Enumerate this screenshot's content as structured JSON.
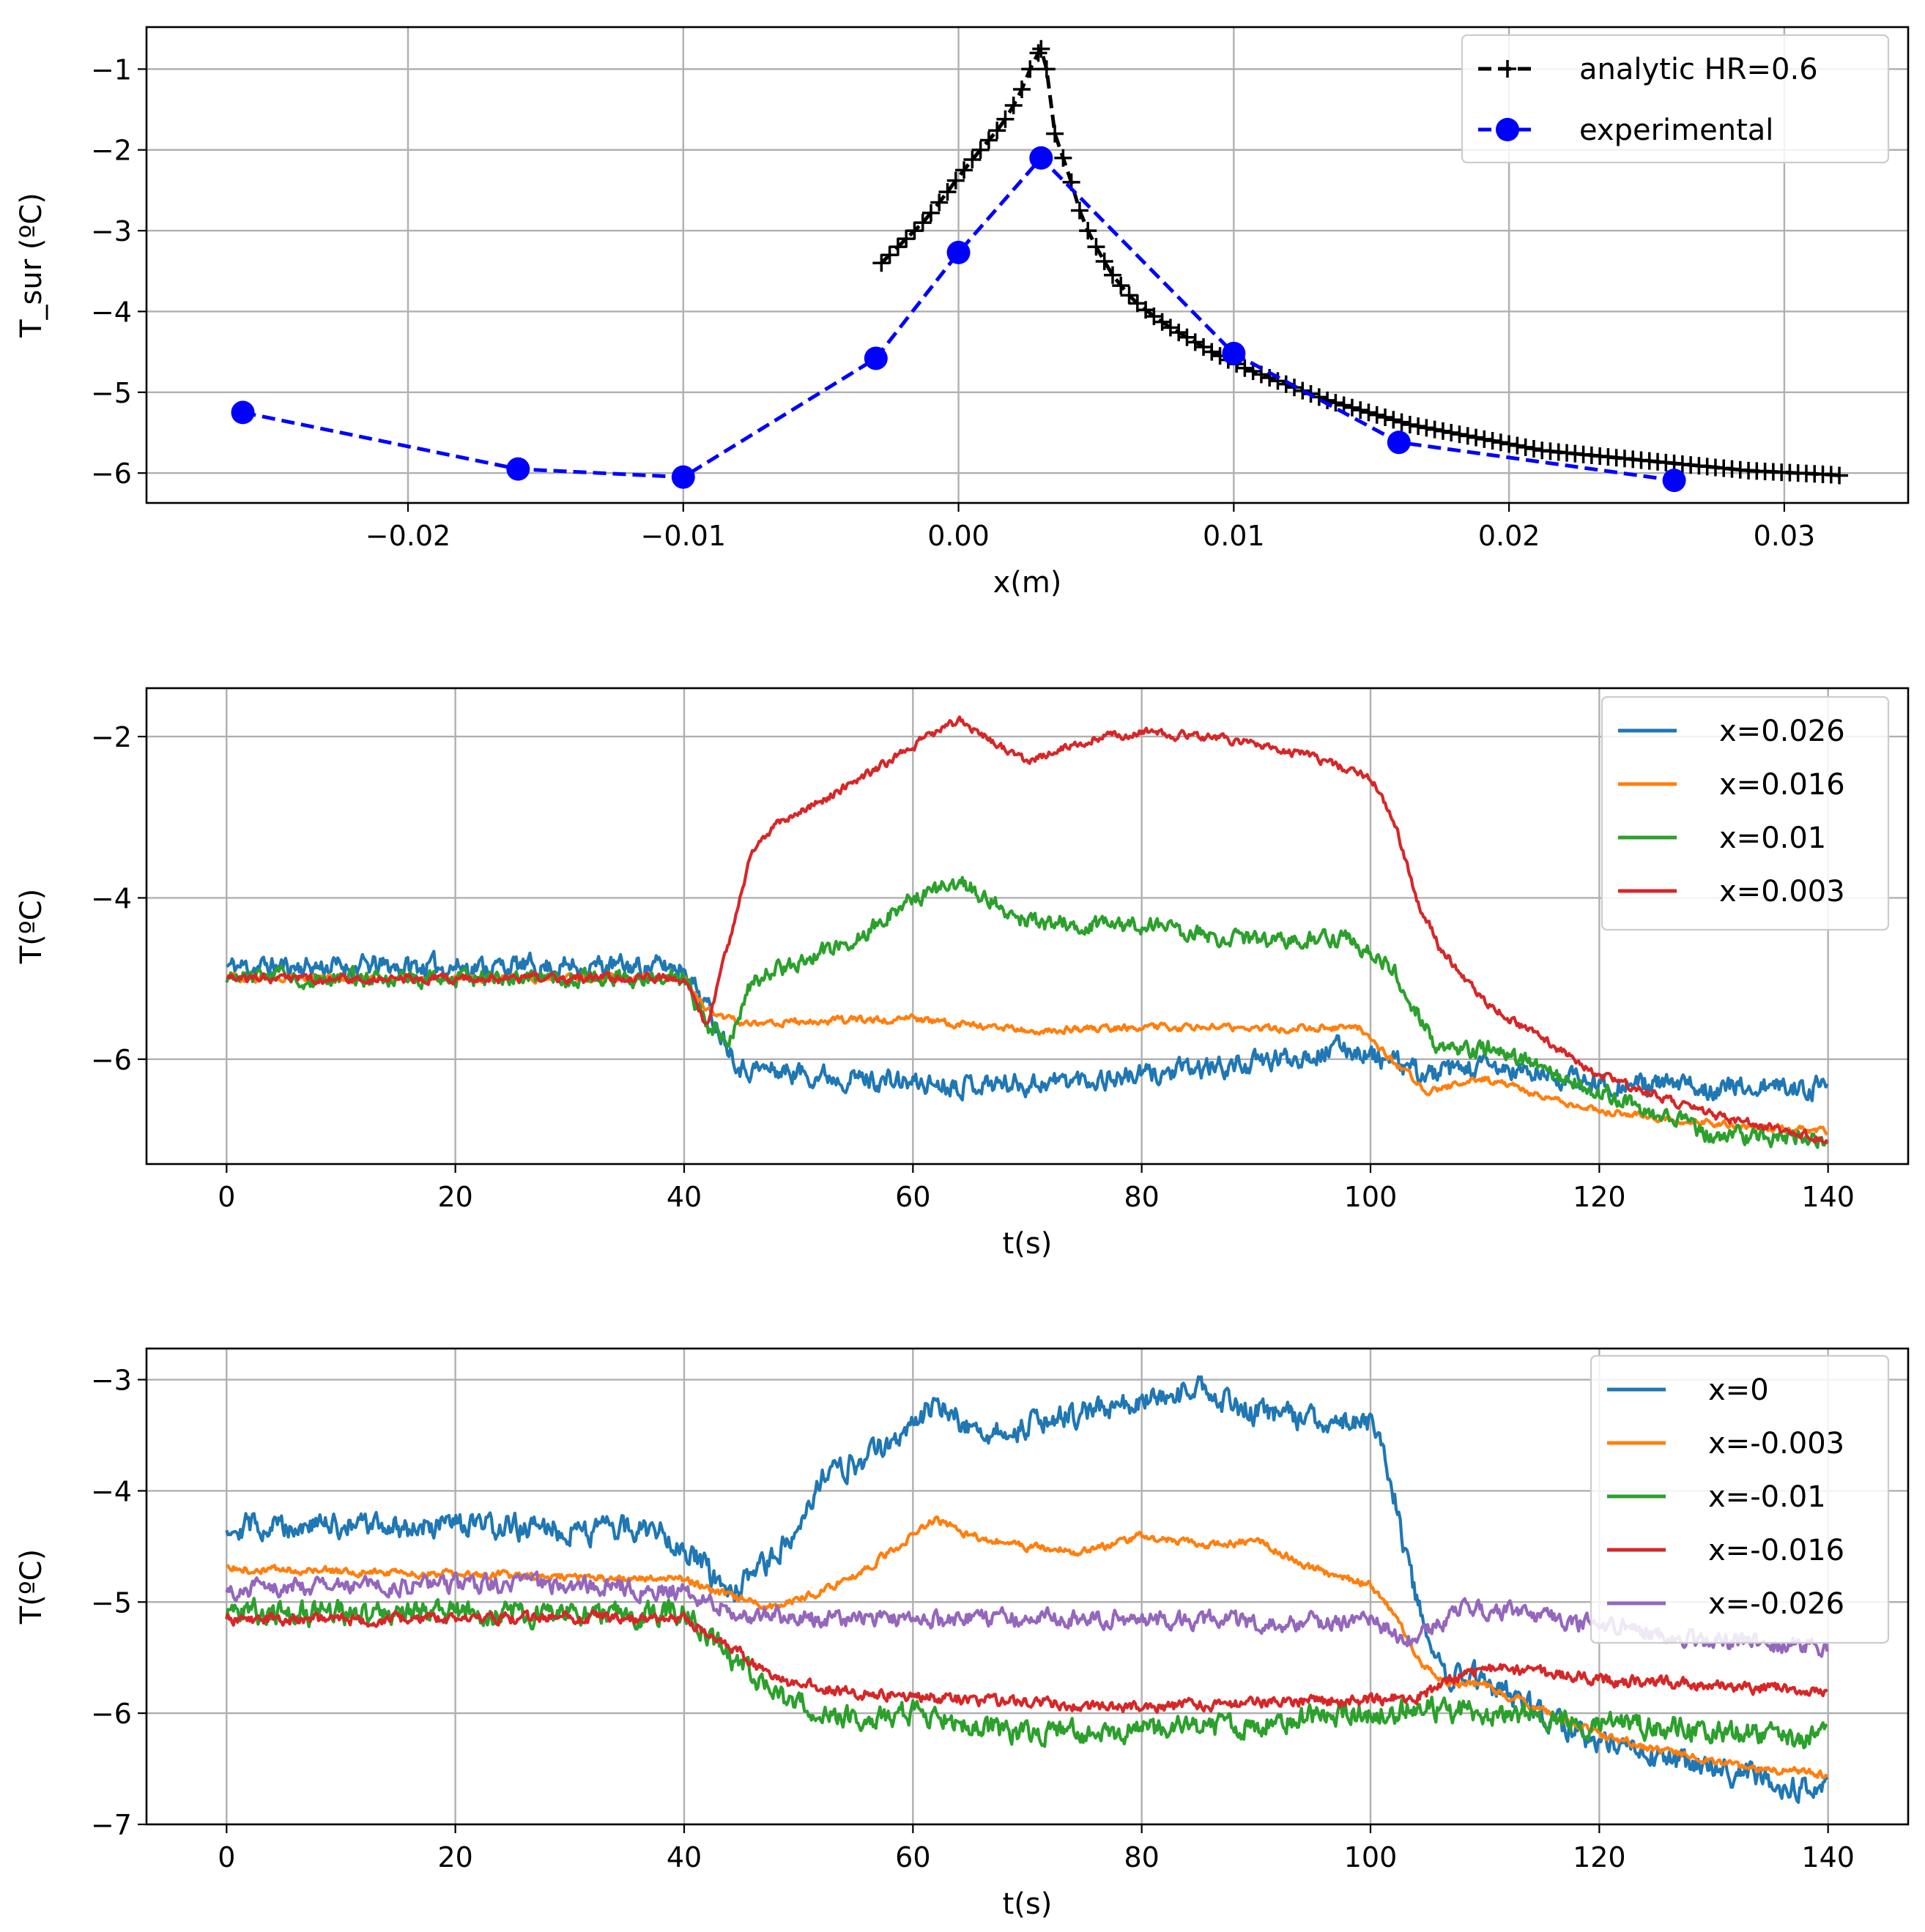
{
  "chart_data": [
    {
      "type": "line",
      "xlabel": "x(m)",
      "ylabel": "T_sur (ºC)",
      "xlim": [
        -0.0295,
        0.0345
      ],
      "ylim": [
        -6.37,
        -0.48
      ],
      "xticks": [
        -0.02,
        -0.01,
        0.0,
        0.01,
        0.02,
        0.03
      ],
      "xtick_labels": [
        "−0.02",
        "−0.01",
        "0.00",
        "0.01",
        "0.02",
        "0.03"
      ],
      "yticks": [
        -6,
        -5,
        -4,
        -3,
        -2,
        -1
      ],
      "ytick_labels": [
        "−6",
        "−5",
        "−4",
        "−3",
        "−2",
        "−1"
      ],
      "legend_position": "upper right",
      "series": [
        {
          "name": "analytic HR=0.6",
          "color": "#000000",
          "linestyle": "dashed",
          "marker": "plus",
          "x": [
            -0.0028,
            -0.0025,
            -0.0022,
            -0.0019,
            -0.0016,
            -0.0013,
            -0.001,
            -0.0007,
            -0.0004,
            -0.0001,
            0.0002,
            0.0005,
            0.0008,
            0.0011,
            0.0014,
            0.0017,
            0.002,
            0.0023,
            0.0026,
            0.0029,
            0.003,
            0.0032,
            0.0035,
            0.0038,
            0.0041,
            0.0044,
            0.0047,
            0.005,
            0.0053,
            0.0056,
            0.0059,
            0.0062,
            0.0065,
            0.0068,
            0.0071,
            0.0074,
            0.0077,
            0.008,
            0.0083,
            0.0086,
            0.0089,
            0.0092,
            0.0095,
            0.0098,
            0.0101,
            0.0104,
            0.0107,
            0.011,
            0.0113,
            0.0116,
            0.0119,
            0.0122,
            0.0125,
            0.0128,
            0.0131,
            0.0134,
            0.0137,
            0.014,
            0.0143,
            0.0146,
            0.0149,
            0.0152,
            0.0155,
            0.0158,
            0.0161,
            0.0164,
            0.0167,
            0.017,
            0.0173,
            0.0176,
            0.0179,
            0.0182,
            0.0185,
            0.0188,
            0.0191,
            0.0194,
            0.0197,
            0.02,
            0.0203,
            0.0206,
            0.0209,
            0.0212,
            0.0215,
            0.0218,
            0.0221,
            0.0224,
            0.0227,
            0.023,
            0.0233,
            0.0236,
            0.0239,
            0.0242,
            0.0245,
            0.0248,
            0.0251,
            0.0254,
            0.0257,
            0.026,
            0.0263,
            0.0266,
            0.0269,
            0.0272,
            0.0275,
            0.0278,
            0.0281,
            0.0284,
            0.0287,
            0.029,
            0.0293,
            0.0296,
            0.0299,
            0.0302,
            0.0305,
            0.0308,
            0.0311,
            0.0314,
            0.0317,
            0.032
          ],
          "y": [
            -3.4,
            -3.3,
            -3.2,
            -3.1,
            -3.0,
            -2.9,
            -2.78,
            -2.65,
            -2.52,
            -2.38,
            -2.25,
            -2.12,
            -2.0,
            -1.88,
            -1.76,
            -1.62,
            -1.45,
            -1.25,
            -1.0,
            -0.8,
            -0.75,
            -1.0,
            -1.8,
            -2.1,
            -2.4,
            -2.75,
            -3.0,
            -3.2,
            -3.38,
            -3.55,
            -3.68,
            -3.8,
            -3.9,
            -3.98,
            -4.06,
            -4.13,
            -4.2,
            -4.26,
            -4.32,
            -4.38,
            -4.44,
            -4.5,
            -4.55,
            -4.6,
            -4.65,
            -4.7,
            -4.74,
            -4.78,
            -4.82,
            -4.86,
            -4.9,
            -4.94,
            -4.98,
            -5.02,
            -5.06,
            -5.1,
            -5.13,
            -5.16,
            -5.19,
            -5.22,
            -5.25,
            -5.28,
            -5.31,
            -5.34,
            -5.37,
            -5.4,
            -5.42,
            -5.44,
            -5.46,
            -5.48,
            -5.5,
            -5.52,
            -5.54,
            -5.56,
            -5.58,
            -5.6,
            -5.62,
            -5.64,
            -5.66,
            -5.68,
            -5.7,
            -5.72,
            -5.73,
            -5.74,
            -5.75,
            -5.76,
            -5.77,
            -5.78,
            -5.79,
            -5.8,
            -5.81,
            -5.82,
            -5.83,
            -5.84,
            -5.85,
            -5.86,
            -5.87,
            -5.88,
            -5.89,
            -5.9,
            -5.91,
            -5.92,
            -5.93,
            -5.94,
            -5.95,
            -5.96,
            -5.97,
            -5.975,
            -5.98,
            -5.985,
            -5.99,
            -5.995,
            -6.0,
            -6.005,
            -6.01,
            -6.015,
            -6.02,
            -6.03
          ]
        },
        {
          "name": "experimental",
          "color": "#0000ff",
          "linestyle": "dashed",
          "marker": "circle",
          "x": [
            -0.026,
            -0.016,
            -0.01,
            -0.003,
            0.0,
            0.003,
            0.01,
            0.016,
            0.026
          ],
          "y": [
            -5.25,
            -5.95,
            -6.05,
            -4.58,
            -3.27,
            -2.1,
            -4.52,
            -5.62,
            -6.09
          ]
        }
      ]
    },
    {
      "type": "line",
      "xlabel": "t(s)",
      "ylabel": "T(ºC)",
      "xlim": [
        -7,
        147
      ],
      "ylim": [
        -7.3,
        -1.4
      ],
      "xticks": [
        0,
        20,
        40,
        60,
        80,
        100,
        120,
        140
      ],
      "xtick_labels": [
        "0",
        "20",
        "40",
        "60",
        "80",
        "100",
        "120",
        "140"
      ],
      "yticks": [
        -6,
        -4,
        -2
      ],
      "ytick_labels": [
        "−6",
        "−4",
        "−2"
      ],
      "legend_position": "upper right",
      "noise_seed": 11,
      "series": [
        {
          "name": "x=0.026",
          "color": "#1f77b4",
          "noise": 0.15,
          "t": [
            0,
            40,
            42,
            45,
            60,
            70,
            80,
            90,
            98,
            100,
            105,
            110,
            120,
            130,
            140
          ],
          "v": [
            -4.85,
            -4.85,
            -5.35,
            -6.1,
            -6.3,
            -6.3,
            -6.2,
            -6.05,
            -5.85,
            -5.95,
            -6.2,
            -6.1,
            -6.3,
            -6.35,
            -6.35
          ]
        },
        {
          "name": "x=0.016",
          "color": "#ff7f0e",
          "noise": 0.05,
          "t": [
            0,
            40,
            42,
            45,
            60,
            70,
            80,
            90,
            99,
            101,
            105,
            110,
            120,
            130,
            140
          ],
          "v": [
            -5.0,
            -5.0,
            -5.4,
            -5.55,
            -5.5,
            -5.65,
            -5.6,
            -5.62,
            -5.6,
            -5.9,
            -6.4,
            -6.25,
            -6.65,
            -6.8,
            -6.9
          ]
        },
        {
          "name": "x=0.01",
          "color": "#2ca02c",
          "noise": 0.12,
          "t": [
            0,
            40,
            42,
            44,
            46,
            50,
            55,
            60,
            64,
            70,
            80,
            90,
            98,
            102,
            106,
            110,
            120,
            130,
            140
          ],
          "v": [
            -5.0,
            -5.0,
            -5.6,
            -5.75,
            -5.0,
            -4.8,
            -4.5,
            -4.0,
            -3.8,
            -4.3,
            -4.35,
            -4.55,
            -4.5,
            -4.9,
            -5.9,
            -5.85,
            -6.4,
            -6.95,
            -7.0
          ]
        },
        {
          "name": "x=0.003",
          "color": "#d62728",
          "noise": 0.06,
          "t": [
            0,
            40,
            42,
            44,
            46,
            48,
            52,
            58,
            62,
            64,
            70,
            75,
            80,
            85,
            90,
            95,
            100,
            102,
            104,
            106,
            110,
            120,
            130,
            140
          ],
          "v": [
            -5.0,
            -5.0,
            -5.6,
            -4.5,
            -3.4,
            -3.1,
            -2.8,
            -2.3,
            -1.95,
            -1.8,
            -2.3,
            -2.05,
            -1.95,
            -2.0,
            -2.1,
            -2.25,
            -2.5,
            -3.0,
            -4.0,
            -4.6,
            -5.3,
            -6.2,
            -6.7,
            -7.0
          ]
        }
      ]
    },
    {
      "type": "line",
      "xlabel": "t(s)",
      "ylabel": "T(ºC)",
      "xlim": [
        -7,
        147
      ],
      "ylim": [
        -7.0,
        -2.72
      ],
      "xticks": [
        0,
        20,
        40,
        60,
        80,
        100,
        120,
        140
      ],
      "xtick_labels": [
        "0",
        "20",
        "40",
        "60",
        "80",
        "100",
        "120",
        "140"
      ],
      "yticks": [
        -7,
        -6,
        -5,
        -4,
        -3
      ],
      "ytick_labels": [
        "−7",
        "−6",
        "−5",
        "−4",
        "−3"
      ],
      "legend_position": "upper right",
      "noise_seed": 29,
      "series": [
        {
          "name": "x=0",
          "color": "#1f77b4",
          "noise": 0.13,
          "t": [
            0,
            38,
            40,
            44,
            48,
            52,
            56,
            60,
            62,
            66,
            70,
            75,
            80,
            85,
            90,
            95,
            100,
            102,
            104,
            106,
            110,
            120,
            130,
            140
          ],
          "v": [
            -4.3,
            -4.35,
            -4.5,
            -4.95,
            -4.6,
            -3.9,
            -3.7,
            -3.4,
            -3.2,
            -3.5,
            -3.4,
            -3.3,
            -3.2,
            -3.1,
            -3.3,
            -3.35,
            -3.4,
            -4.0,
            -5.0,
            -5.6,
            -5.7,
            -6.3,
            -6.5,
            -6.7
          ]
        },
        {
          "name": "x=-0.003",
          "color": "#ff7f0e",
          "noise": 0.04,
          "t": [
            0,
            40,
            44,
            48,
            52,
            56,
            60,
            62,
            65,
            70,
            75,
            80,
            85,
            90,
            95,
            100,
            102,
            104,
            106,
            110,
            120,
            130,
            140
          ],
          "v": [
            -4.7,
            -4.8,
            -4.95,
            -5.05,
            -4.9,
            -4.7,
            -4.4,
            -4.25,
            -4.4,
            -4.5,
            -4.55,
            -4.4,
            -4.5,
            -4.45,
            -4.7,
            -4.85,
            -5.1,
            -5.5,
            -5.7,
            -5.75,
            -6.2,
            -6.45,
            -6.55
          ]
        },
        {
          "name": "x=-0.01",
          "color": "#2ca02c",
          "noise": 0.12,
          "t": [
            0,
            40,
            44,
            48,
            55,
            60,
            70,
            80,
            90,
            100,
            105,
            110,
            120,
            130,
            140
          ],
          "v": [
            -5.1,
            -5.1,
            -5.5,
            -5.85,
            -6.05,
            -6.0,
            -6.2,
            -6.15,
            -6.1,
            -6.0,
            -5.95,
            -6.0,
            -6.1,
            -6.15,
            -6.25
          ]
        },
        {
          "name": "x=-0.016",
          "color": "#d62728",
          "noise": 0.06,
          "t": [
            0,
            40,
            44,
            48,
            55,
            60,
            70,
            80,
            90,
            100,
            104,
            108,
            112,
            120,
            130,
            140
          ],
          "v": [
            -5.15,
            -5.15,
            -5.4,
            -5.7,
            -5.82,
            -5.85,
            -5.9,
            -5.95,
            -5.9,
            -5.88,
            -5.85,
            -5.65,
            -5.6,
            -5.7,
            -5.75,
            -5.8
          ]
        },
        {
          "name": "x=-0.026",
          "color": "#9467bd",
          "noise": 0.09,
          "t": [
            0,
            10,
            20,
            30,
            40,
            45,
            50,
            60,
            70,
            80,
            90,
            100,
            104,
            108,
            112,
            120,
            130,
            140
          ],
          "v": [
            -4.9,
            -4.85,
            -4.85,
            -4.85,
            -4.9,
            -5.1,
            -5.15,
            -5.15,
            -5.15,
            -5.15,
            -5.18,
            -5.18,
            -5.35,
            -5.05,
            -5.1,
            -5.2,
            -5.35,
            -5.4
          ]
        }
      ]
    }
  ]
}
